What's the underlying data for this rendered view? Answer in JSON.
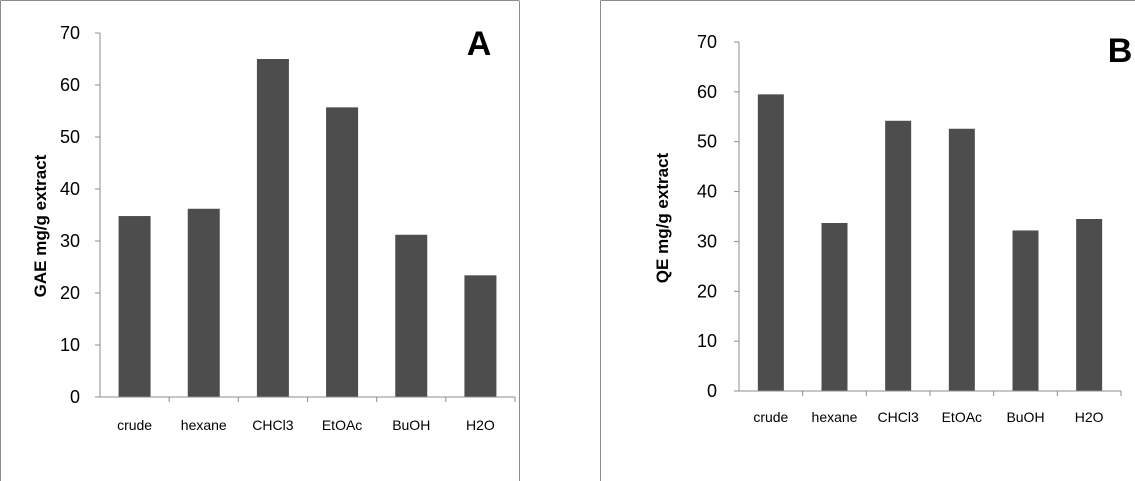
{
  "chart_data": [
    {
      "type": "bar",
      "panel_label": "A",
      "categories": [
        "crude",
        "hexane",
        "CHCl3",
        "EtOAc",
        "BuOH",
        "H2O"
      ],
      "values": [
        34.8,
        36.2,
        65.0,
        55.7,
        31.2,
        23.4
      ],
      "yticks": [
        "0",
        "10",
        "20",
        "30",
        "40",
        "50",
        "60",
        "70"
      ],
      "ylabel": "GAE mg/g extract",
      "xlabel": "",
      "ylim": [
        0,
        70
      ],
      "bar_color": "#4d4d4d"
    },
    {
      "type": "bar",
      "panel_label": "B",
      "categories": [
        "crude",
        "hexane",
        "CHCl3",
        "EtOAc",
        "BuOH",
        "H2O"
      ],
      "values": [
        59.5,
        33.7,
        54.2,
        52.6,
        32.2,
        34.5
      ],
      "yticks": [
        "0",
        "10",
        "20",
        "30",
        "40",
        "50",
        "60",
        "70"
      ],
      "ylabel": "QE mg/g extract",
      "xlabel": "",
      "ylim": [
        0,
        70
      ],
      "bar_color": "#4d4d4d"
    }
  ]
}
